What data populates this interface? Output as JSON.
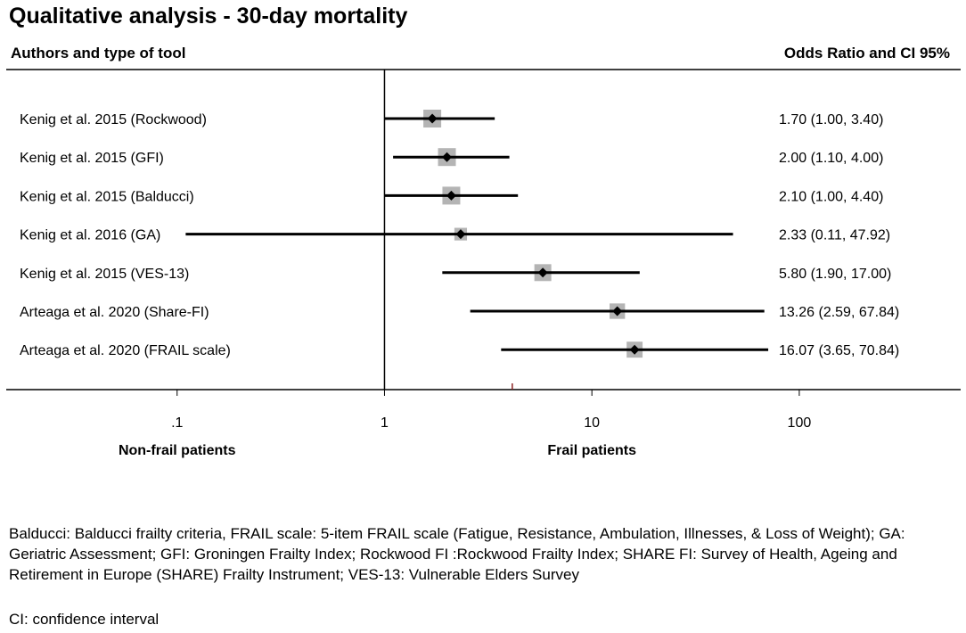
{
  "title": "Qualitative analysis - 30-day mortality",
  "header": {
    "left": "Authors and  type of tool",
    "right": "Odds Ratio and CI 95%"
  },
  "chart_data": {
    "type": "forest",
    "scale": "log",
    "xlim": [
      0.015,
      600
    ],
    "x_ticks": [
      0.1,
      1,
      10,
      100
    ],
    "x_tick_labels": [
      ".1",
      "1",
      "10",
      "100"
    ],
    "reference_line": 1,
    "left_label": "Non-frail patients",
    "right_label": "Frail patients",
    "studies": [
      {
        "label": "Kenig  et al. 2015 (Rockwood)",
        "or": 1.7,
        "lo": 1.0,
        "hi": 3.4,
        "text": "1.70 (1.00, 3.40)",
        "weight": 1.0
      },
      {
        "label": "Kenig  et al. 2015 (GFI)",
        "or": 2.0,
        "lo": 1.1,
        "hi": 4.0,
        "text": "2.00 (1.10, 4.00)",
        "weight": 1.0
      },
      {
        "label": "Kenig  et al. 2015 (Balducci)",
        "or": 2.1,
        "lo": 1.0,
        "hi": 4.4,
        "text": "2.10 (1.00, 4.40)",
        "weight": 1.0
      },
      {
        "label": "Kenig  et al. 2016 (GA)",
        "or": 2.33,
        "lo": 0.11,
        "hi": 47.92,
        "text": "2.33 (0.11, 47.92)",
        "weight": 0.5
      },
      {
        "label": "Kenig  et al. 2015 (VES-13)",
        "or": 5.8,
        "lo": 1.9,
        "hi": 17.0,
        "text": "5.80 (1.90, 17.00)",
        "weight": 0.9
      },
      {
        "label": "Arteaga et al. 2020 (Share-FI)",
        "or": 13.26,
        "lo": 2.59,
        "hi": 67.84,
        "text": "13.26 (2.59, 67.84)",
        "weight": 0.75
      },
      {
        "label": "Arteaga et al. 2020 (FRAIL scale)",
        "or": 16.07,
        "lo": 3.65,
        "hi": 70.84,
        "text": "16.07 (3.65, 70.84)",
        "weight": 0.8
      }
    ]
  },
  "footnotes": {
    "abbreviations": "Balducci: Balducci frailty criteria, FRAIL scale: 5-item FRAIL scale (Fatigue, Resistance, Ambulation, Illnesses, & Loss of Weight); GA: Geriatric Assessment; GFI: Groningen Frailty Index; Rockwood FI :Rockwood Frailty Index; SHARE FI: Survey of Health, Ageing and Retirement in Europe (SHARE) Frailty Instrument; VES-13: Vulnerable Elders Survey",
    "ci": "CI: confidence interval"
  },
  "colors": {
    "line": "#000000",
    "weight_box": "#b4b4b4",
    "pooled_marker": "#8b2222"
  }
}
